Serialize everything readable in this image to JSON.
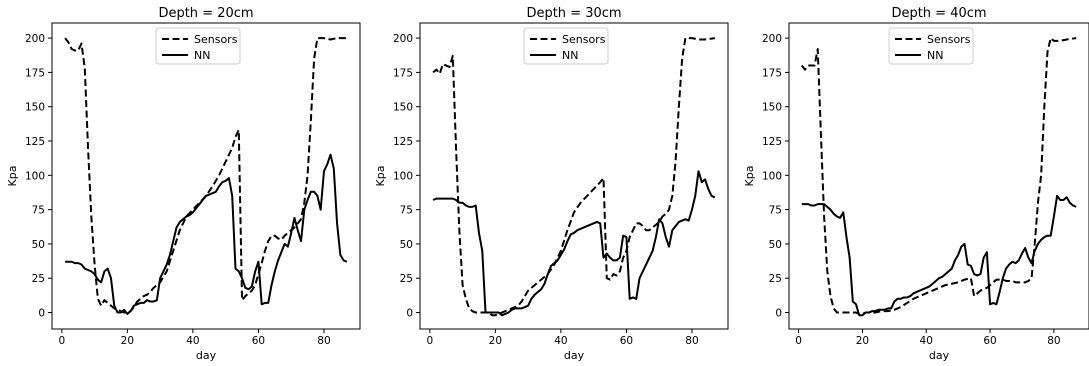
{
  "chart_data": [
    {
      "type": "line",
      "title": "Depth = 20cm",
      "xlabel": "day",
      "ylabel": "Kpa",
      "xlim": [
        -3,
        91
      ],
      "ylim": [
        -12,
        211
      ],
      "xticks": [
        0,
        20,
        40,
        60,
        80
      ],
      "yticks": [
        0,
        25,
        50,
        75,
        100,
        125,
        150,
        175,
        200
      ],
      "legend_position": "top-center",
      "series": [
        {
          "name": "Sensors",
          "style": "dashed",
          "color": "#000000",
          "x": [
            1,
            2,
            3,
            4,
            5,
            6,
            7,
            8,
            9,
            10,
            11,
            12,
            13,
            14,
            15,
            16,
            17,
            18,
            19,
            20,
            21,
            22,
            23,
            24,
            25,
            26,
            27,
            28,
            29,
            30,
            32,
            34,
            36,
            38,
            40,
            42,
            44,
            46,
            48,
            50,
            52,
            53,
            54,
            55,
            56,
            57,
            58,
            59,
            60,
            61,
            62,
            63,
            64,
            65,
            66,
            67,
            68,
            69,
            70,
            71,
            72,
            73,
            74,
            75,
            76,
            77,
            78,
            80,
            82,
            84,
            87
          ],
          "values": [
            200,
            197,
            192,
            191,
            191,
            196,
            178,
            120,
            70,
            35,
            10,
            5,
            9,
            7,
            5,
            3,
            2,
            1,
            0,
            0,
            1,
            4,
            8,
            10,
            12,
            13,
            15,
            18,
            20,
            22,
            30,
            45,
            60,
            70,
            75,
            80,
            85,
            92,
            100,
            110,
            120,
            128,
            133,
            9,
            12,
            14,
            16,
            20,
            28,
            36,
            45,
            52,
            56,
            56,
            54,
            53,
            56,
            58,
            60,
            62,
            65,
            68,
            80,
            100,
            140,
            185,
            200,
            200,
            199,
            200,
            200
          ]
        },
        {
          "name": "NN",
          "style": "solid",
          "color": "#000000",
          "x": [
            1,
            2,
            3,
            4,
            5,
            6,
            7,
            8,
            9,
            10,
            11,
            12,
            13,
            14,
            15,
            16,
            17,
            18,
            19,
            20,
            21,
            22,
            23,
            24,
            25,
            26,
            27,
            28,
            29,
            30,
            31,
            32,
            33,
            34,
            35,
            36,
            37,
            38,
            39,
            40,
            41,
            42,
            43,
            44,
            45,
            46,
            47,
            48,
            49,
            50,
            51,
            52,
            53,
            54,
            55,
            56,
            57,
            58,
            59,
            60,
            61,
            62,
            63,
            64,
            65,
            66,
            67,
            68,
            69,
            70,
            71,
            72,
            73,
            74,
            75,
            76,
            77,
            78,
            79,
            80,
            81,
            82,
            83,
            84,
            85,
            86,
            87
          ],
          "values": [
            37,
            37,
            37,
            36,
            36,
            35,
            32,
            31,
            30,
            28,
            24,
            22,
            30,
            32,
            25,
            5,
            0,
            0,
            2,
            -1,
            1,
            5,
            6,
            7,
            7,
            9,
            8,
            8,
            9,
            25,
            30,
            35,
            42,
            52,
            62,
            66,
            68,
            70,
            71,
            73,
            76,
            79,
            82,
            85,
            86,
            87,
            88,
            92,
            95,
            96,
            98,
            85,
            32,
            30,
            25,
            18,
            17,
            19,
            30,
            37,
            6,
            7,
            7,
            20,
            30,
            38,
            44,
            50,
            48,
            58,
            69,
            60,
            52,
            75,
            82,
            88,
            88,
            85,
            75,
            103,
            108,
            115,
            105,
            65,
            42,
            38,
            37
          ]
        }
      ]
    },
    {
      "type": "line",
      "title": "Depth = 30cm",
      "xlabel": "day",
      "ylabel": "Kpa",
      "xlim": [
        -3,
        91
      ],
      "ylim": [
        -12,
        211
      ],
      "xticks": [
        0,
        20,
        40,
        60,
        80
      ],
      "yticks": [
        0,
        25,
        50,
        75,
        100,
        125,
        150,
        175,
        200
      ],
      "legend_position": "top-center",
      "series": [
        {
          "name": "Sensors",
          "style": "dashed",
          "color": "#000000",
          "x": [
            1,
            2,
            3,
            4,
            5,
            6,
            7,
            8,
            9,
            10,
            11,
            12,
            13,
            14,
            15,
            16,
            17,
            18,
            19,
            20,
            21,
            22,
            23,
            24,
            25,
            26,
            27,
            28,
            29,
            30,
            32,
            34,
            36,
            38,
            40,
            42,
            44,
            46,
            48,
            50,
            52,
            53,
            54,
            55,
            56,
            57,
            58,
            59,
            60,
            61,
            62,
            63,
            64,
            65,
            66,
            67,
            68,
            69,
            70,
            71,
            72,
            73,
            74,
            75,
            76,
            77,
            78,
            80,
            82,
            84,
            87
          ],
          "values": [
            175,
            177,
            174,
            181,
            180,
            179,
            187,
            120,
            60,
            20,
            10,
            3,
            1,
            0,
            0,
            0,
            0,
            0,
            -2,
            -2,
            -1,
            0,
            1,
            2,
            3,
            4,
            5,
            8,
            12,
            16,
            20,
            24,
            28,
            35,
            45,
            60,
            73,
            80,
            85,
            90,
            95,
            98,
            25,
            24,
            28,
            27,
            30,
            40,
            45,
            55,
            60,
            65,
            65,
            63,
            60,
            60,
            62,
            64,
            66,
            70,
            72,
            75,
            85,
            110,
            150,
            185,
            200,
            200,
            199,
            199,
            200
          ]
        },
        {
          "name": "NN",
          "style": "solid",
          "color": "#000000",
          "x": [
            1,
            2,
            3,
            4,
            5,
            6,
            7,
            8,
            9,
            10,
            11,
            12,
            13,
            14,
            15,
            16,
            17,
            18,
            19,
            20,
            21,
            22,
            23,
            24,
            25,
            26,
            27,
            28,
            29,
            30,
            31,
            32,
            33,
            34,
            35,
            36,
            37,
            38,
            39,
            40,
            41,
            42,
            43,
            44,
            45,
            46,
            47,
            48,
            49,
            50,
            51,
            52,
            53,
            54,
            55,
            56,
            57,
            58,
            59,
            60,
            61,
            62,
            63,
            64,
            65,
            66,
            67,
            68,
            69,
            70,
            71,
            72,
            73,
            74,
            75,
            76,
            77,
            78,
            79,
            80,
            81,
            82,
            83,
            84,
            85,
            86,
            87
          ],
          "values": [
            82,
            83,
            83,
            83,
            83,
            83,
            83,
            82,
            80,
            80,
            78,
            77,
            77,
            78,
            58,
            45,
            0,
            0,
            0,
            0,
            0,
            -2,
            -1,
            0,
            2,
            3,
            3,
            3,
            4,
            5,
            10,
            13,
            15,
            17,
            21,
            28,
            34,
            36,
            38,
            42,
            46,
            52,
            57,
            58,
            60,
            61,
            62,
            63,
            64,
            65,
            66,
            65,
            40,
            43,
            40,
            38,
            38,
            40,
            56,
            55,
            10,
            11,
            10,
            25,
            30,
            35,
            40,
            45,
            55,
            68,
            65,
            55,
            48,
            60,
            63,
            66,
            67,
            68,
            67,
            75,
            85,
            103,
            95,
            97,
            90,
            85,
            84
          ]
        }
      ]
    },
    {
      "type": "line",
      "title": "Depth = 40cm",
      "xlabel": "day",
      "ylabel": "Kpa",
      "xlim": [
        -3,
        91
      ],
      "ylim": [
        -12,
        211
      ],
      "xticks": [
        0,
        20,
        40,
        60,
        80
      ],
      "yticks": [
        0,
        25,
        50,
        75,
        100,
        125,
        150,
        175,
        200
      ],
      "legend_position": "top-center",
      "series": [
        {
          "name": "Sensors",
          "style": "dashed",
          "color": "#000000",
          "x": [
            1,
            2,
            3,
            4,
            5,
            6,
            7,
            8,
            9,
            10,
            11,
            12,
            13,
            14,
            15,
            16,
            17,
            18,
            19,
            20,
            21,
            22,
            24,
            26,
            28,
            30,
            32,
            34,
            36,
            38,
            40,
            42,
            44,
            46,
            48,
            50,
            52,
            54,
            55,
            56,
            57,
            58,
            59,
            60,
            61,
            62,
            63,
            64,
            65,
            66,
            67,
            68,
            69,
            70,
            71,
            72,
            73,
            74,
            75,
            76,
            77,
            78,
            79,
            80,
            82,
            84,
            87
          ],
          "values": [
            180,
            177,
            180,
            180,
            180,
            192,
            130,
            70,
            30,
            12,
            3,
            0,
            0,
            0,
            0,
            0,
            0,
            0,
            -1,
            -1,
            0,
            0,
            0,
            1,
            1,
            2,
            4,
            7,
            10,
            12,
            14,
            16,
            18,
            20,
            21,
            22,
            24,
            25,
            12,
            14,
            16,
            17,
            18,
            20,
            22,
            24,
            24,
            24,
            23,
            23,
            23,
            22,
            22,
            22,
            22,
            23,
            25,
            50,
            80,
            100,
            150,
            190,
            200,
            198,
            198,
            199,
            200
          ]
        },
        {
          "name": "NN",
          "style": "solid",
          "color": "#000000",
          "x": [
            1,
            2,
            3,
            4,
            5,
            6,
            7,
            8,
            9,
            10,
            11,
            12,
            13,
            14,
            15,
            16,
            17,
            18,
            19,
            20,
            21,
            22,
            23,
            24,
            25,
            26,
            27,
            28,
            29,
            30,
            31,
            32,
            33,
            34,
            35,
            36,
            37,
            38,
            39,
            40,
            41,
            42,
            43,
            44,
            45,
            46,
            47,
            48,
            49,
            50,
            51,
            52,
            53,
            54,
            55,
            56,
            57,
            58,
            59,
            60,
            61,
            62,
            63,
            64,
            65,
            66,
            67,
            68,
            69,
            70,
            71,
            72,
            73,
            74,
            75,
            76,
            77,
            78,
            79,
            80,
            81,
            82,
            83,
            84,
            85,
            86,
            87
          ],
          "values": [
            79,
            79,
            79,
            78,
            78,
            79,
            79,
            79,
            77,
            75,
            72,
            70,
            69,
            73,
            55,
            40,
            8,
            6,
            -2,
            -2,
            0,
            0,
            1,
            1,
            2,
            2,
            2,
            3,
            3,
            8,
            10,
            10,
            11,
            11,
            12,
            14,
            15,
            16,
            17,
            18,
            19,
            21,
            23,
            25,
            26,
            28,
            30,
            32,
            38,
            42,
            48,
            50,
            35,
            34,
            28,
            27,
            28,
            40,
            44,
            6,
            7,
            6,
            15,
            25,
            32,
            35,
            37,
            36,
            38,
            43,
            47,
            40,
            36,
            45,
            50,
            53,
            55,
            56,
            56,
            70,
            85,
            82,
            82,
            84,
            80,
            78,
            77
          ]
        }
      ]
    }
  ]
}
